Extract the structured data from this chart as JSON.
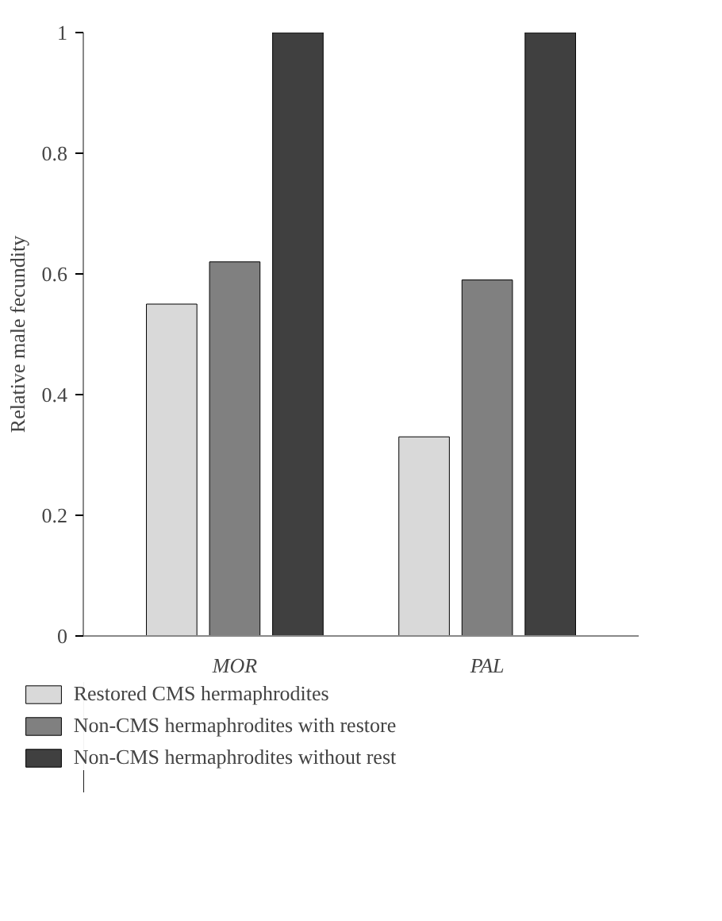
{
  "chart_data": {
    "type": "bar",
    "ylabel": "Relative male fecundity",
    "categories": [
      "MOR",
      "PAL"
    ],
    "series": [
      {
        "name": "Restored CMS hermaphrodites",
        "color": "#d9d9d9",
        "values": [
          0.55,
          0.33
        ]
      },
      {
        "name": "Non-CMS hermaphrodites with restore",
        "color": "#808080",
        "values": [
          0.62,
          0.59
        ]
      },
      {
        "name": "Non-CMS hermaphrodites without rest",
        "color": "#404040",
        "values": [
          1,
          1
        ]
      }
    ],
    "ylim": [
      0,
      1
    ],
    "yticks": [
      0,
      0.2,
      0.4,
      0.6,
      0.8,
      1
    ],
    "grid": false,
    "legend": "bottom"
  }
}
